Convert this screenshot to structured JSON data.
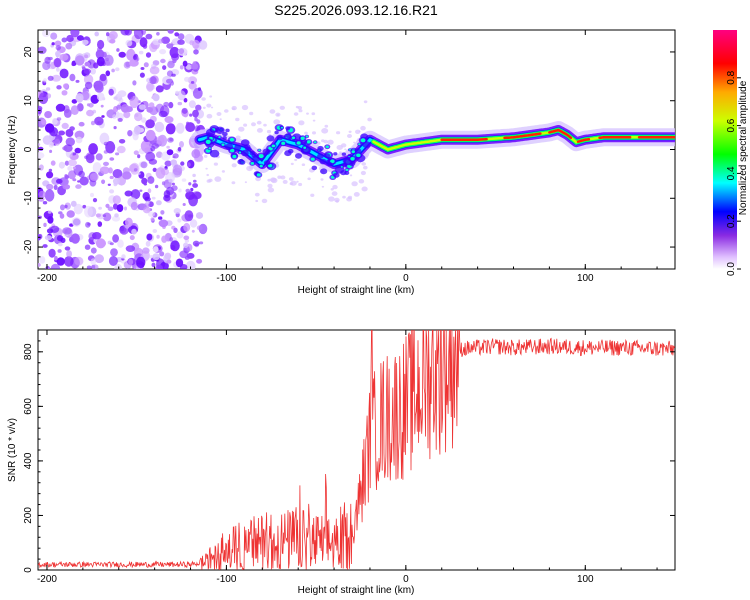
{
  "title": "S225.2026.093.12.16.R21",
  "colors": {
    "snr_line": "#ee3333",
    "spec_low": "#cc99ff",
    "spec_mid": "#00ff66",
    "spec_high": "#ff0000"
  },
  "chart_data": [
    {
      "type": "heatmap",
      "title": "S225.2026.093.12.16.R21",
      "xlabel": "Height of straight line (km)",
      "ylabel": "Frequency (Hz)",
      "xlim": [
        -205,
        150
      ],
      "ylim": [
        -24.5,
        24.5
      ],
      "xticks": [
        -200,
        -100,
        0,
        100
      ],
      "yticks": [
        -20,
        -10,
        0,
        10,
        20
      ],
      "noise_region_x": [
        -205,
        -113
      ],
      "ridge": {
        "x": [
          -115,
          -110,
          -100,
          -90,
          -80,
          -70,
          -60,
          -50,
          -40,
          -30,
          -20,
          -10,
          0,
          10,
          20,
          40,
          60,
          80,
          85,
          90,
          95,
          100,
          110,
          130,
          150
        ],
        "y": [
          2,
          2.5,
          1,
          0,
          -3,
          2,
          1,
          -1,
          -3,
          -2,
          2,
          0,
          1,
          1.5,
          2,
          2,
          2.5,
          3.5,
          4,
          3,
          1.5,
          2,
          2.5,
          2.5,
          2.5
        ]
      },
      "colorbar": {
        "label": "Normalized spectral amplitude",
        "range": [
          0,
          1
        ],
        "ticks": [
          0.0,
          0.2,
          0.4,
          0.6,
          0.8
        ]
      }
    },
    {
      "type": "line",
      "title": "",
      "xlabel": "Height of straight line (km)",
      "ylabel": "SNR (10 * v/v)",
      "xlim": [
        -205,
        150
      ],
      "ylim": [
        0,
        880
      ],
      "xticks": [
        -200,
        -100,
        0,
        100
      ],
      "yticks": [
        0,
        200,
        400,
        600,
        800
      ],
      "series": [
        {
          "name": "SNR",
          "envelope": {
            "x": [
              -205,
              -120,
              -110,
              -100,
              -90,
              -80,
              -70,
              -60,
              -50,
              -40,
              -30,
              -25,
              -20,
              -15,
              -10,
              -5,
              0,
              5,
              10,
              15,
              20,
              25,
              30,
              40,
              50,
              60,
              80,
              100,
              120,
              150
            ],
            "y": [
              20,
              20,
              30,
              70,
              90,
              100,
              105,
              110,
              100,
              100,
              140,
              280,
              480,
              540,
              560,
              580,
              600,
              650,
              700,
              740,
              760,
              790,
              810,
              815,
              820,
              815,
              820,
              815,
              815,
              810
            ]
          },
          "peak": {
            "x": -19,
            "y": 880
          }
        }
      ]
    }
  ]
}
